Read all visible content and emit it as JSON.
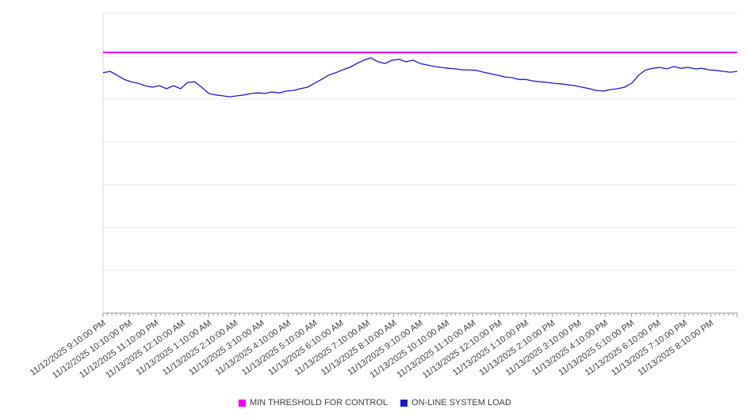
{
  "chart_data": {
    "type": "line",
    "title": "",
    "xlabel": "",
    "ylabel": "",
    "ylim": [
      0,
      100
    ],
    "grid": "horizontal",
    "grid_divisions": 7,
    "legend_position": "bottom-center",
    "x_tick_labels": [
      "11/12/2025 9:10:00 PM",
      "11/12/2025 10:10:00 PM",
      "11/12/2025 11:10:00 PM",
      "11/13/2025 12:10:00 AM",
      "11/13/2025 1:10:00 AM",
      "11/13/2025 2:10:00 AM",
      "11/13/2025 3:10:00 AM",
      "11/13/2025 4:10:00 AM",
      "11/13/2025 5:10:00 AM",
      "11/13/2025 6:10:00 AM",
      "11/13/2025 7:10:00 AM",
      "11/13/2025 8:10:00 AM",
      "11/13/2025 9:10:00 AM",
      "11/13/2025 10:10:00 AM",
      "11/13/2025 11:10:00 AM",
      "11/13/2025 12:10:00 PM",
      "11/13/2025 1:10:00 PM",
      "11/13/2025 2:10:00 PM",
      "11/13/2025 3:10:00 PM",
      "11/13/2025 4:10:00 PM",
      "11/13/2025 5:10:00 PM",
      "11/13/2025 6:10:00 PM",
      "11/13/2025 7:10:00 PM",
      "11/13/2025 8:10:00 PM"
    ],
    "series": [
      {
        "name": "MIN THRESHOLD FOR CONTROL",
        "type": "threshold",
        "color": "#f000f0",
        "value": 87
      },
      {
        "name": "ON-LINE SYSTEM LOAD",
        "type": "line",
        "color": "#1a1acd",
        "values": [
          80.2,
          80.7,
          79.4,
          78.0,
          77.2,
          76.7,
          75.9,
          75.4,
          75.9,
          74.9,
          75.9,
          74.9,
          77.0,
          77.2,
          75.4,
          73.3,
          72.8,
          72.5,
          72.2,
          72.5,
          72.8,
          73.3,
          73.5,
          73.3,
          73.8,
          73.5,
          74.1,
          74.3,
          74.9,
          75.4,
          76.7,
          78.0,
          79.4,
          80.2,
          81.2,
          82.0,
          83.3,
          84.4,
          85.2,
          83.9,
          83.3,
          84.4,
          84.7,
          83.9,
          84.4,
          83.3,
          82.8,
          82.3,
          82.0,
          81.7,
          81.5,
          81.2,
          81.2,
          81.0,
          80.4,
          79.9,
          79.4,
          78.8,
          78.6,
          78.0,
          78.0,
          77.5,
          77.2,
          77.0,
          76.7,
          76.5,
          76.2,
          75.9,
          75.4,
          74.9,
          74.3,
          74.1,
          74.6,
          74.9,
          75.4,
          76.7,
          79.4,
          81.2,
          81.7,
          82.0,
          81.5,
          82.3,
          81.7,
          82.0,
          81.5,
          81.7,
          81.2,
          81.0,
          80.7,
          80.4,
          80.7
        ]
      }
    ]
  },
  "legend": {
    "items": [
      {
        "label": "MIN THRESHOLD FOR CONTROL",
        "color": "#f000f0"
      },
      {
        "label": "ON-LINE SYSTEM LOAD",
        "color": "#1a1acd"
      }
    ]
  },
  "colors": {
    "gridline": "#e7e7e7",
    "axis_line": "#999999",
    "y_axis_border": "#d6d6d6",
    "tick_label_text": "#3d3d3d"
  }
}
